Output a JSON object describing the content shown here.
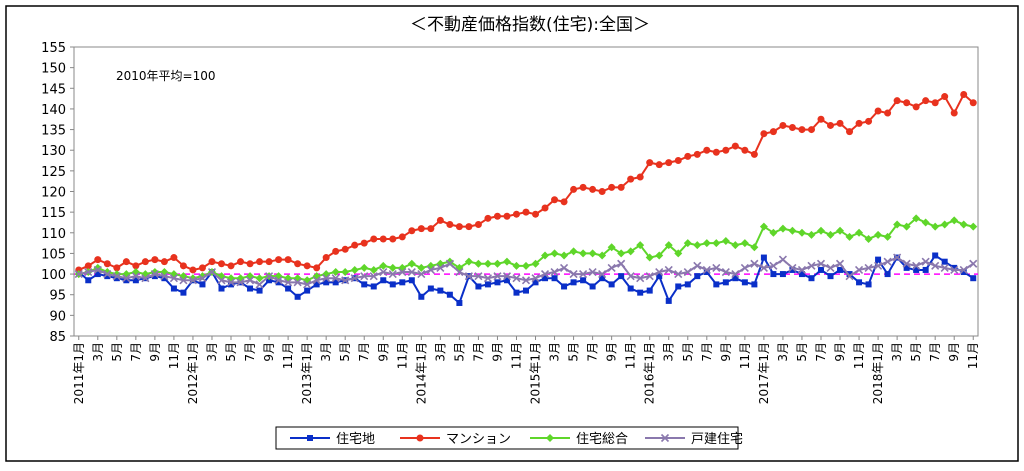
{
  "chart_data": {
    "type": "line",
    "title": "＜不動産価格指数(住宅):全国＞",
    "annotation": "2010年平均=100",
    "categories": [
      "2011年1月",
      null,
      "3月",
      null,
      "5月",
      null,
      "7月",
      null,
      "9月",
      null,
      "11月",
      null,
      "2012年1月",
      null,
      "3月",
      null,
      "5月",
      null,
      "7月",
      null,
      "9月",
      null,
      "11月",
      null,
      "2013年1月",
      null,
      "3月",
      null,
      "5月",
      null,
      "7月",
      null,
      "9月",
      null,
      "11月",
      null,
      "2014年1月",
      null,
      "3月",
      null,
      "5月",
      null,
      "7月",
      null,
      "9月",
      null,
      "11月",
      null,
      "2015年1月",
      null,
      "3月",
      null,
      "5月",
      null,
      "7月",
      null,
      "9月",
      null,
      "11月",
      null,
      "2016年1月",
      null,
      "3月",
      null,
      "5月",
      null,
      "7月",
      null,
      "9月",
      null,
      "11月",
      null,
      "2017年1月",
      null,
      "3月",
      null,
      "5月",
      null,
      "7月",
      null,
      "9月",
      null,
      "11月",
      null,
      "2018年1月",
      null,
      "3月",
      null,
      "5月",
      null,
      "7月",
      null,
      "9月",
      null,
      "11月"
    ],
    "series": [
      {
        "name": "住宅地",
        "color": "#0a2fc8",
        "marker": "square",
        "values": [
          100.5,
          98.5,
          100,
          99.5,
          99,
          98.5,
          98.5,
          99,
          99.5,
          99,
          96.5,
          95.5,
          98.5,
          97.5,
          100.5,
          96.5,
          97.5,
          98,
          96.5,
          96,
          98.5,
          98,
          96.5,
          94.5,
          96,
          97.5,
          98,
          98,
          98.5,
          99,
          97.5,
          97,
          98.5,
          97.5,
          98,
          98.5,
          94.5,
          96.5,
          96,
          95,
          93,
          99.5,
          97,
          97.5,
          98,
          98.5,
          95.5,
          96,
          98,
          99,
          99,
          97,
          98,
          98.5,
          97,
          99,
          97.5,
          99.5,
          96.5,
          95.5,
          96,
          99.5,
          93.5,
          97,
          97.5,
          99.5,
          100.5,
          97.5,
          98,
          99,
          98,
          97.5,
          104,
          100,
          100,
          101,
          100,
          99,
          101,
          99.5,
          101,
          100,
          98,
          97.5,
          103.5,
          100,
          104,
          101.5,
          101,
          101,
          104.5,
          103,
          101.5,
          100.5,
          99
        ]
      },
      {
        "name": "マンション",
        "color": "#e8321e",
        "marker": "circle",
        "values": [
          101,
          102,
          103.5,
          102.5,
          101.5,
          103,
          102,
          103,
          103.5,
          103,
          104,
          102,
          101,
          101.5,
          103,
          102.5,
          102,
          103,
          102.5,
          103,
          103,
          103.5,
          103.5,
          102.5,
          102,
          101.5,
          104,
          105.5,
          106,
          107,
          107.5,
          108.5,
          108.5,
          108.5,
          109,
          110.5,
          111,
          111,
          113,
          112,
          111.5,
          111.5,
          112,
          113.5,
          114,
          114,
          114.5,
          115,
          114.5,
          116,
          118,
          117.5,
          120.5,
          121,
          120.5,
          120,
          121,
          121,
          123,
          123.5,
          127,
          126.5,
          127,
          127.5,
          128.5,
          129,
          130,
          129.5,
          130,
          131,
          130,
          129,
          134,
          134.5,
          136,
          135.5,
          135,
          135,
          137.5,
          136,
          136.5,
          134.5,
          136.5,
          137,
          139.5,
          139,
          142,
          141.5,
          140.5,
          142,
          141.5,
          143,
          139,
          143.5,
          141.5
        ]
      },
      {
        "name": "住宅総合",
        "color": "#5fd62a",
        "marker": "diamond",
        "values": [
          100,
          100.5,
          101.5,
          100.5,
          100,
          100,
          100.5,
          100,
          100.5,
          100.5,
          100,
          99.5,
          99,
          99.5,
          100.5,
          99.5,
          99,
          99,
          99.5,
          99,
          99.5,
          99.5,
          99,
          99,
          98.5,
          99.5,
          100,
          100.5,
          100.5,
          101,
          101.5,
          101,
          102,
          101.5,
          101.5,
          102.5,
          101.5,
          102,
          102.5,
          103,
          101.5,
          103,
          102.5,
          102.5,
          102.5,
          103,
          102,
          102,
          102.5,
          104.5,
          105,
          104.5,
          105.5,
          105,
          105,
          104.5,
          106.5,
          105,
          105.5,
          107,
          104,
          104.5,
          107,
          105,
          107.5,
          107,
          107.5,
          107.5,
          108,
          107,
          107.5,
          106.5,
          111.5,
          110,
          111,
          110.5,
          110,
          109.5,
          110.5,
          109.5,
          110.5,
          109,
          110,
          108.5,
          109.5,
          109,
          112,
          111.5,
          113.5,
          112.5,
          111.5,
          112,
          113,
          112,
          111.5
        ]
      },
      {
        "name": "戸建住宅",
        "color": "#8a78ad",
        "marker": "x",
        "values": [
          100,
          100.5,
          101,
          100,
          99.5,
          99,
          99.5,
          99,
          100,
          99.5,
          99,
          98.5,
          98.5,
          99,
          100.5,
          98.5,
          98,
          98,
          98.5,
          97.5,
          99.5,
          98.5,
          98,
          98,
          97.5,
          98.5,
          99,
          99,
          98.5,
          99,
          99.5,
          99.5,
          100.5,
          100,
          100.5,
          100.5,
          100,
          101,
          101.5,
          102.5,
          100.5,
          99.5,
          99.5,
          99,
          99.5,
          99.5,
          99,
          98.5,
          99,
          100,
          100.5,
          101.5,
          100,
          100,
          100.5,
          100,
          101.5,
          102.5,
          99.5,
          99,
          99.5,
          100.5,
          101,
          100,
          100.5,
          102,
          101,
          101.5,
          100.5,
          100,
          101.5,
          102.5,
          101.5,
          102,
          103.5,
          101.5,
          101,
          102,
          102.5,
          101.5,
          102.5,
          99.5,
          101,
          101.5,
          102,
          103,
          104,
          102.5,
          102,
          103,
          102,
          101.5,
          101,
          101,
          102.5
        ]
      }
    ],
    "reference_line": {
      "value": 100,
      "color": "#ff00ff"
    },
    "ylim": [
      85,
      155
    ],
    "yticks": [
      85,
      90,
      95,
      100,
      105,
      110,
      115,
      120,
      125,
      130,
      135,
      140,
      145,
      150,
      155
    ],
    "grid": false,
    "legend": "bottom"
  }
}
